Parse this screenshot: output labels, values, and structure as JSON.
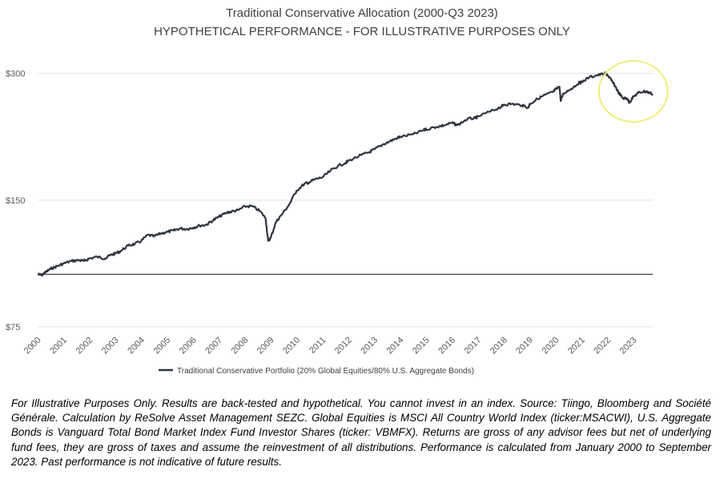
{
  "chart_data": {
    "type": "line",
    "title": "Traditional Conservative Allocation (2000-Q3 2023)",
    "subtitle": "HYPOTHETICAL PERFORMANCE - FOR ILLUSTRATIVE PURPOSES ONLY",
    "xlabel": "",
    "ylabel": "",
    "y_scale": "log",
    "ylim": [
      75,
      330
    ],
    "y_ticks": [
      75,
      150,
      300
    ],
    "y_tick_labels": [
      "$75",
      "$150",
      "$300"
    ],
    "x_tick_labels": [
      "2000",
      "2001",
      "2002",
      "2003",
      "2004",
      "2005",
      "2006",
      "2007",
      "2008",
      "2009",
      "2010",
      "2011",
      "2012",
      "2013",
      "2014",
      "2015",
      "2016",
      "2017",
      "2018",
      "2019",
      "2020",
      "2021",
      "2022",
      "2023"
    ],
    "xlim": [
      2000.0,
      2023.75
    ],
    "reference_line": 100,
    "grid": "horizontal",
    "legend_position": "bottom",
    "highlight": {
      "shape": "circle",
      "color": "#f2ec7a",
      "note": "2022-2023 drawdown"
    },
    "series": [
      {
        "name": "Traditional Conservative Portfolio (20% Global Equities/80% U.S. Aggregate Bonds)",
        "color": "#2f3640",
        "x": [
          2000.0,
          2000.15,
          2000.3,
          2000.5,
          2000.75,
          2001.0,
          2001.3,
          2001.6,
          2001.8,
          2002.0,
          2002.3,
          2002.6,
          2002.8,
          2003.0,
          2003.2,
          2003.5,
          2003.75,
          2004.0,
          2004.25,
          2004.5,
          2004.75,
          2005.0,
          2005.25,
          2005.5,
          2005.75,
          2006.0,
          2006.25,
          2006.5,
          2006.75,
          2007.0,
          2007.3,
          2007.5,
          2007.75,
          2008.0,
          2008.3,
          2008.6,
          2008.8,
          2008.9,
          2009.0,
          2009.2,
          2009.4,
          2009.7,
          2010.0,
          2010.3,
          2010.45,
          2010.7,
          2011.0,
          2011.3,
          2011.6,
          2011.9,
          2012.0,
          2012.5,
          2012.8,
          2013.0,
          2013.3,
          2013.6,
          2013.9,
          2014.0,
          2014.5,
          2014.9,
          2015.0,
          2015.4,
          2015.7,
          2016.0,
          2016.2,
          2016.6,
          2016.9,
          2017.0,
          2017.5,
          2017.9,
          2018.0,
          2018.3,
          2018.7,
          2018.95,
          2019.0,
          2019.3,
          2019.6,
          2019.9,
          2020.0,
          2020.15,
          2020.2,
          2020.3,
          2020.6,
          2020.9,
          2021.0,
          2021.3,
          2021.6,
          2021.9,
          2022.0,
          2022.15,
          2022.3,
          2022.45,
          2022.6,
          2022.75,
          2022.85,
          2023.0,
          2023.2,
          2023.4,
          2023.55,
          2023.75
        ],
        "y": [
          100,
          99.5,
          101,
          103,
          104.5,
          106,
          107.5,
          108,
          107.5,
          109,
          110,
          109,
          111,
          112,
          113.5,
          117,
          118,
          120,
          124,
          123,
          125,
          126,
          127,
          128.5,
          128,
          129,
          130.5,
          131,
          134,
          137,
          140,
          141,
          142,
          145,
          145,
          141,
          136,
          120,
          122,
          133,
          138,
          146,
          158,
          164,
          165,
          168,
          170,
          176,
          181,
          184,
          186,
          192,
          195,
          198,
          203,
          207,
          211,
          212,
          215,
          220,
          221,
          224,
          226,
          229,
          226,
          234,
          235,
          237,
          244,
          250,
          253,
          254,
          252,
          249,
          254,
          261,
          267,
          271,
          275,
          279,
          258,
          269,
          276,
          285,
          286,
          294,
          297,
          300,
          298,
          289,
          280,
          269,
          262,
          262,
          256,
          264,
          270,
          272,
          271,
          268
        ]
      }
    ]
  },
  "footnote": "For Illustrative Purposes Only. Results are back-tested and hypothetical. You cannot invest in an index. Source: Tiingo, Bloomberg and Société Générale. Calculation by ReSolve Asset Management SEZC. Global Equities is MSCI All Country World Index (ticker:MSACWI), U.S. Aggregate Bonds is Vanguard Total Bond Market Index Fund Investor Shares (ticker: VBMFX). Returns are gross of any advisor fees but net of underlying fund fees, they are gross of taxes and assume the reinvestment of all distributions. Performance is calculated from January 2000 to September 2023. Past performance is not indicative of future results."
}
